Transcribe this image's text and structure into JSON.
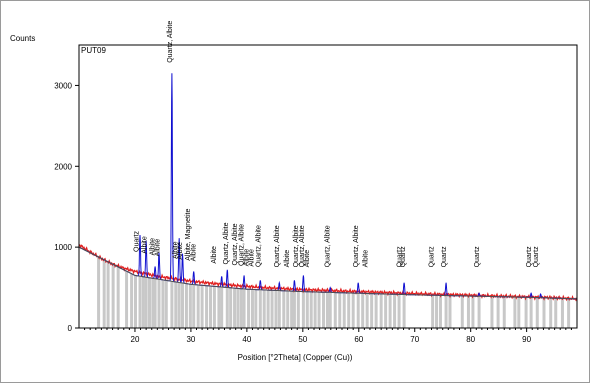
{
  "chart_data": {
    "type": "line",
    "title": "",
    "sample_label": "PUT09",
    "xlabel": "Position [°2Theta] (Copper (Cu))",
    "ylabel": "Counts",
    "xlim": [
      10,
      99
    ],
    "ylim": [
      0,
      3500
    ],
    "x_ticks": [
      20,
      30,
      40,
      50,
      60,
      70,
      80,
      90
    ],
    "y_ticks": [
      0,
      1000,
      2000,
      3000
    ],
    "grid": false,
    "legend": "none",
    "colors": {
      "observed": "#e02020",
      "calculated": "#1010d0",
      "background": "#505050",
      "reference": "#c8c8c8"
    },
    "series": [
      {
        "role": "observed",
        "x": [
          10,
          12,
          14,
          16,
          18,
          20,
          22,
          24,
          26,
          28,
          30,
          32,
          34,
          36,
          38,
          40,
          42,
          44,
          46,
          48,
          50,
          52,
          54,
          56,
          58,
          60,
          62,
          64,
          66,
          68,
          70,
          75,
          80,
          85,
          90,
          95,
          99
        ],
        "y": [
          1030,
          940,
          860,
          790,
          740,
          700,
          670,
          640,
          620,
          600,
          580,
          565,
          550,
          540,
          525,
          515,
          505,
          495,
          490,
          480,
          475,
          470,
          465,
          460,
          455,
          450,
          445,
          440,
          435,
          430,
          425,
          415,
          405,
          395,
          385,
          375,
          360
        ]
      },
      {
        "role": "calculated",
        "peaks": [
          {
            "x": 20.9,
            "y": 1150
          },
          {
            "x": 22.0,
            "y": 1080
          },
          {
            "x": 23.6,
            "y": 760
          },
          {
            "x": 24.3,
            "y": 930
          },
          {
            "x": 26.6,
            "y": 3150
          },
          {
            "x": 27.9,
            "y": 1110
          },
          {
            "x": 28.5,
            "y": 920
          },
          {
            "x": 30.5,
            "y": 700
          },
          {
            "x": 35.5,
            "y": 640
          },
          {
            "x": 36.5,
            "y": 720
          },
          {
            "x": 39.5,
            "y": 650
          },
          {
            "x": 42.4,
            "y": 590
          },
          {
            "x": 45.8,
            "y": 560
          },
          {
            "x": 48.5,
            "y": 590
          },
          {
            "x": 50.1,
            "y": 650
          },
          {
            "x": 54.9,
            "y": 500
          },
          {
            "x": 59.9,
            "y": 560
          },
          {
            "x": 68.1,
            "y": 560
          },
          {
            "x": 75.6,
            "y": 560
          },
          {
            "x": 81.5,
            "y": 430
          },
          {
            "x": 90.8,
            "y": 430
          },
          {
            "x": 92.5,
            "y": 420
          }
        ]
      },
      {
        "role": "background",
        "x": [
          10,
          20,
          30,
          40,
          50,
          60,
          70,
          80,
          90,
          99
        ],
        "y": [
          1000,
          650,
          540,
          480,
          450,
          430,
          410,
          395,
          380,
          360
        ]
      }
    ],
    "reference_lines": [
      13.5,
      14.5,
      15.2,
      16.1,
      17.0,
      18.5,
      19.4,
      20.1,
      20.9,
      21.5,
      22.0,
      22.6,
      23.2,
      23.6,
      24.3,
      25.0,
      25.6,
      26.6,
      27.3,
      27.9,
      28.5,
      29.2,
      29.9,
      30.5,
      31.3,
      32.0,
      32.8,
      33.5,
      34.2,
      35.0,
      35.5,
      36.5,
      37.1,
      37.8,
      38.4,
      39.0,
      39.5,
      40.3,
      41.0,
      41.6,
      42.4,
      43.1,
      43.8,
      44.5,
      45.2,
      45.8,
      46.6,
      47.3,
      48.0,
      48.5,
      49.2,
      50.1,
      50.8,
      51.5,
      52.2,
      52.9,
      53.7,
      54.4,
      54.9,
      55.8,
      56.6,
      57.4,
      58.2,
      59.0,
      59.9,
      60.7,
      61.5,
      62.3,
      63.1,
      64.0,
      64.8,
      65.6,
      66.4,
      67.2,
      68.1,
      73.2,
      73.9,
      74.6,
      75.6,
      76.3,
      78.5,
      79.6,
      80.4,
      81.5,
      83.8,
      84.9,
      86.0,
      87.9,
      88.6,
      89.9,
      90.8,
      91.9,
      93.1,
      94.3,
      95.2,
      96.4,
      97.5
    ],
    "annotations": [
      {
        "x": 20.6,
        "text": "Quartz"
      },
      {
        "x": 22.1,
        "text": "Albite"
      },
      {
        "x": 23.5,
        "text": "Albite"
      },
      {
        "x": 24.4,
        "text": "Albite"
      },
      {
        "x": 26.6,
        "text": "Quartz, Albite"
      },
      {
        "x": 27.6,
        "text": "Albite"
      },
      {
        "x": 28.4,
        "text": "Albite"
      },
      {
        "x": 29.8,
        "text": "Albite, Magnetite"
      },
      {
        "x": 30.8,
        "text": "Albite"
      },
      {
        "x": 34.5,
        "text": "Albite"
      },
      {
        "x": 36.6,
        "text": "Quartz, Albite"
      },
      {
        "x": 38.2,
        "text": "Quartz, Albite"
      },
      {
        "x": 39.4,
        "text": "Quartz, Albite"
      },
      {
        "x": 40.3,
        "text": "Albite"
      },
      {
        "x": 41.2,
        "text": "Albite"
      },
      {
        "x": 42.4,
        "text": "Quartz, Albite"
      },
      {
        "x": 45.7,
        "text": "Quartz, Albite"
      },
      {
        "x": 47.5,
        "text": "Albite"
      },
      {
        "x": 49.1,
        "text": "Quartz, Albite"
      },
      {
        "x": 50.2,
        "text": "Quartz, Albite"
      },
      {
        "x": 51.1,
        "text": "Albite"
      },
      {
        "x": 54.8,
        "text": "Quartz, Albite"
      },
      {
        "x": 59.9,
        "text": "Quartz, Albite"
      },
      {
        "x": 61.6,
        "text": "Albite"
      },
      {
        "x": 67.6,
        "text": "Quartz"
      },
      {
        "x": 68.3,
        "text": "Quartz"
      },
      {
        "x": 73.4,
        "text": "Quartz"
      },
      {
        "x": 75.6,
        "text": "Quartz"
      },
      {
        "x": 81.5,
        "text": "Quartz"
      },
      {
        "x": 90.8,
        "text": "Quartz"
      },
      {
        "x": 92.0,
        "text": "Quartz"
      }
    ]
  }
}
